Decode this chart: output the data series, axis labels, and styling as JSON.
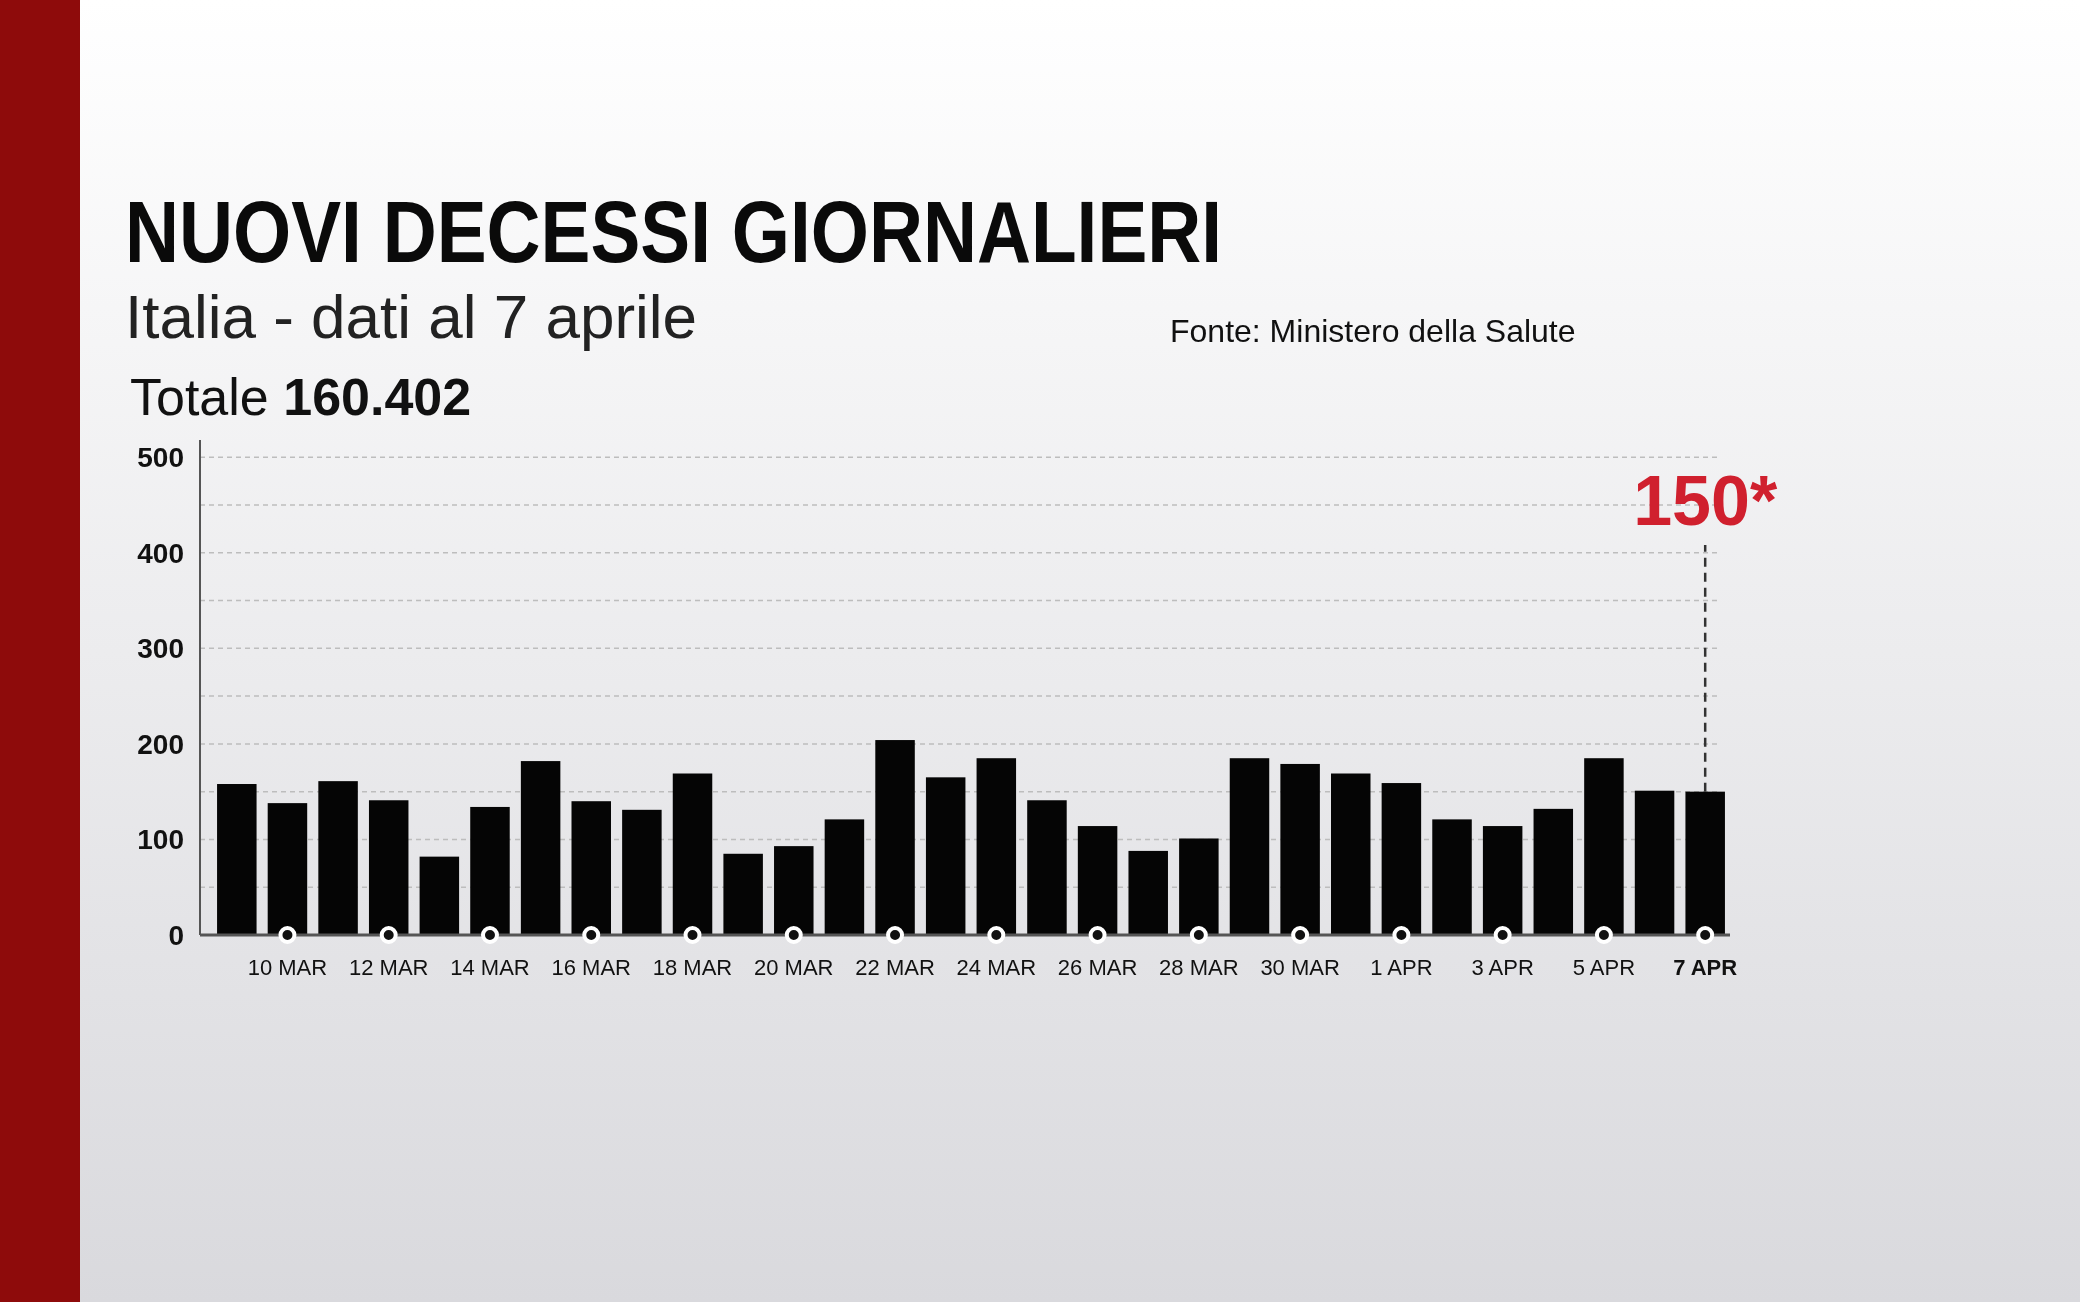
{
  "chart_data": {
    "type": "bar",
    "title": "NUOVI DECESSI GIORNALIERI",
    "subtitle": "Italia - dati al 7 aprile",
    "annotations": [
      "Totale 160.402",
      "Fonte: Ministero della Salute",
      {
        "text": "150*",
        "x": "7 APR",
        "y": 150
      }
    ],
    "categories": [
      null,
      "10 MAR",
      null,
      "12 MAR",
      null,
      "14 MAR",
      null,
      "16 MAR",
      null,
      "18 MAR",
      null,
      "20 MAR",
      null,
      "22 MAR",
      null,
      "24 MAR",
      null,
      "26 MAR",
      null,
      "28 MAR",
      null,
      "30 MAR",
      null,
      "1 APR",
      null,
      "3 APR",
      null,
      "5 APR",
      null,
      "7 APR"
    ],
    "values": [
      158,
      138,
      161,
      141,
      82,
      134,
      182,
      140,
      131,
      169,
      85,
      93,
      121,
      204,
      165,
      185,
      141,
      114,
      88,
      101,
      185,
      179,
      169,
      159,
      121,
      114,
      132,
      185,
      151,
      150
    ],
    "color": "#050505",
    "ylim": [
      0,
      518
    ],
    "yticks": [
      0,
      {
        "value": 50,
        "label": null
      },
      100,
      {
        "value": 150,
        "label": null
      },
      200,
      {
        "value": 250,
        "label": null
      },
      300,
      {
        "value": 350,
        "label": null
      },
      400,
      {
        "value": 450,
        "label": null
      },
      500
    ],
    "grid": "y"
  }
}
